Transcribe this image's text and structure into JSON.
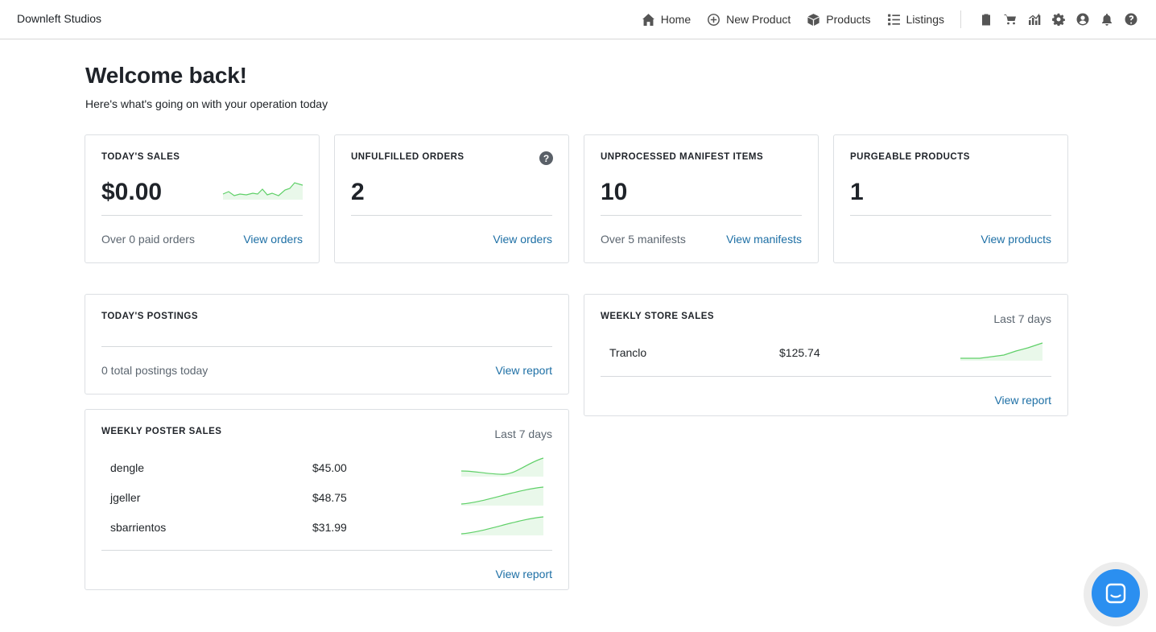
{
  "brand": "Downleft Studios",
  "nav": {
    "links": [
      {
        "label": "Home",
        "icon": "home-icon"
      },
      {
        "label": "New Product",
        "icon": "plus-circle-icon"
      },
      {
        "label": "Products",
        "icon": "cube-icon"
      },
      {
        "label": "Listings",
        "icon": "list-icon"
      }
    ],
    "icons": [
      "clipboard-icon",
      "cart-icon",
      "chart-icon",
      "gear-icon",
      "user-circle-icon",
      "bell-icon",
      "help-icon"
    ]
  },
  "heading": "Welcome back!",
  "subtitle": "Here's what's going on with your operation today",
  "cards": {
    "sales": {
      "title": "TODAY'S SALES",
      "value": "$0.00",
      "foot": "Over 0 paid orders",
      "link": "View orders"
    },
    "unfulfilled": {
      "title": "UNFULFILLED ORDERS",
      "value": "2",
      "foot": "",
      "link": "View orders",
      "help": "?"
    },
    "manifest": {
      "title": "UNPROCESSED MANIFEST ITEMS",
      "value": "10",
      "foot": "Over 5 manifests",
      "link": "View manifests"
    },
    "purgeable": {
      "title": "PURGEABLE PRODUCTS",
      "value": "1",
      "foot": "",
      "link": "View products"
    }
  },
  "postings": {
    "title": "TODAY'S POSTINGS",
    "foot": "0 total postings today",
    "link": "View report"
  },
  "poster_sales": {
    "title": "WEEKLY POSTER SALES",
    "period": "Last 7 days",
    "rows": [
      {
        "name": "dengle",
        "amount": "$45.00"
      },
      {
        "name": "jgeller",
        "amount": "$48.75"
      },
      {
        "name": "sbarrientos",
        "amount": "$31.99"
      }
    ],
    "link": "View report"
  },
  "store_sales": {
    "title": "WEEKLY STORE SALES",
    "period": "Last 7 days",
    "rows": [
      {
        "name": "Tranclo",
        "amount": "$125.74"
      }
    ],
    "link": "View report"
  },
  "colors": {
    "link": "#1d6fa5",
    "spark_line": "#5fd068",
    "spark_fill": "#e9f8ea",
    "chat": "#2b8ff0"
  }
}
